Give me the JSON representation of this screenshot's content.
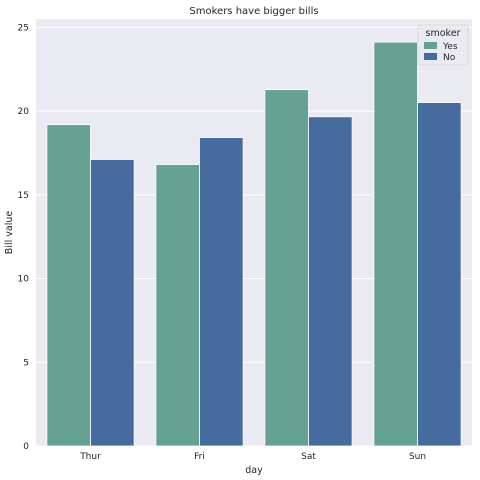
{
  "chart_data": {
    "type": "bar",
    "title": "Smokers have bigger bills",
    "xlabel": "day",
    "ylabel": "Bill value",
    "categories": [
      "Thur",
      "Fri",
      "Sat",
      "Sun"
    ],
    "series": [
      {
        "name": "Yes",
        "values": [
          19.19,
          16.81,
          21.28,
          24.12
        ]
      },
      {
        "name": "No",
        "values": [
          17.11,
          18.42,
          19.66,
          20.51
        ]
      }
    ],
    "ylim": [
      0,
      25.5
    ],
    "yticks": [
      0,
      5,
      10,
      15,
      20,
      25
    ],
    "grid": true,
    "legend": {
      "title": "smoker",
      "position": "top-right"
    },
    "colors": {
      "Yes": "#66a292",
      "No": "#466b9e",
      "background": "#eaeaf2",
      "grid": "#ffffff"
    }
  }
}
